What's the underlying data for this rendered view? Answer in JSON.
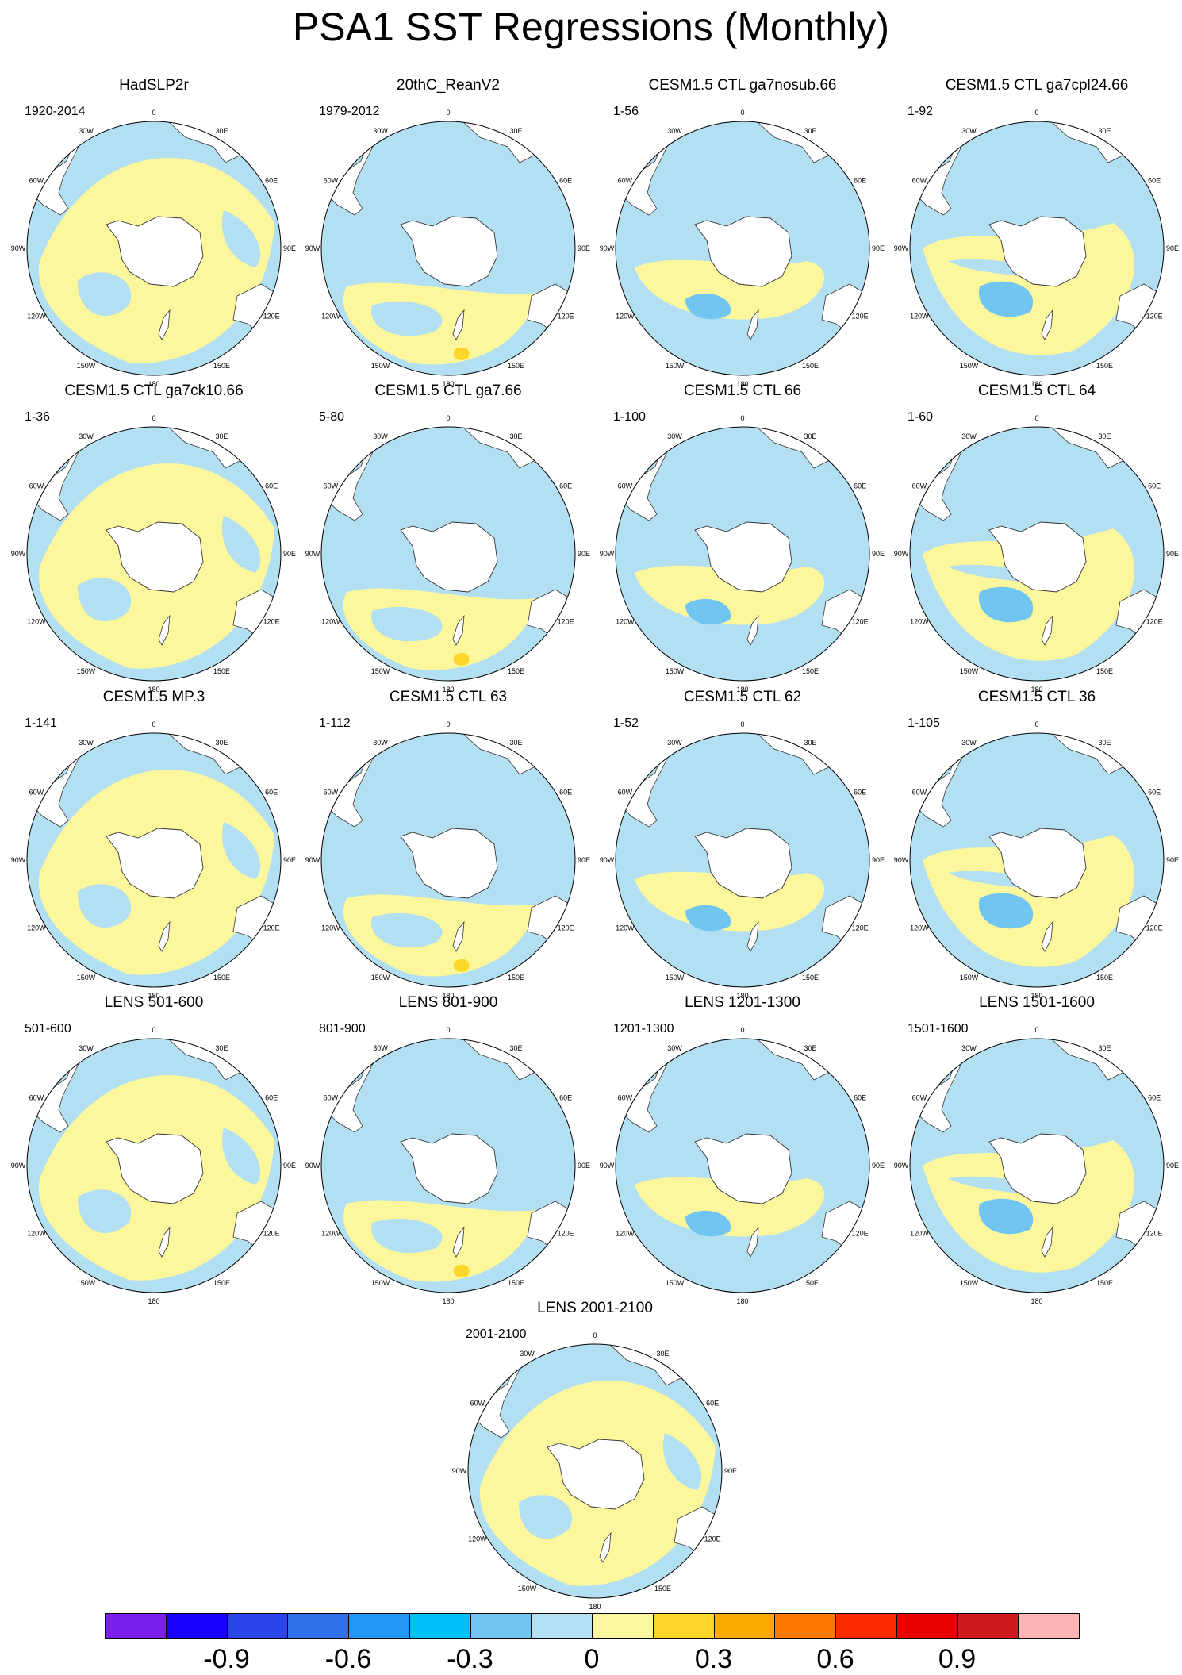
{
  "title": "PSA1 SST Regressions (Monthly)",
  "lon_labels": [
    "0",
    "30E",
    "60E",
    "90E",
    "120E",
    "150E",
    "180",
    "150W",
    "120W",
    "90W",
    "60W",
    "30W"
  ],
  "panels": [
    {
      "title": "HadSLP2r",
      "range": "1920-2014"
    },
    {
      "title": "20thC_ReanV2",
      "range": "1979-2012"
    },
    {
      "title": "CESM1.5 CTL ga7nosub.66",
      "range": "1-56"
    },
    {
      "title": "CESM1.5 CTL ga7cpl24.66",
      "range": "1-92"
    },
    {
      "title": "CESM1.5 CTL ga7ck10.66",
      "range": "1-36"
    },
    {
      "title": "CESM1.5 CTL ga7.66",
      "range": "5-80"
    },
    {
      "title": "CESM1.5 CTL 66",
      "range": "1-100"
    },
    {
      "title": "CESM1.5 CTL 64",
      "range": "1-60"
    },
    {
      "title": "CESM1.5 MP.3",
      "range": "1-141"
    },
    {
      "title": "CESM1.5 CTL 63",
      "range": "1-112"
    },
    {
      "title": "CESM1.5 CTL 62",
      "range": "1-52"
    },
    {
      "title": "CESM1.5 CTL 36",
      "range": "1-105"
    },
    {
      "title": "LENS 501-600",
      "range": "501-600"
    },
    {
      "title": "LENS 801-900",
      "range": "801-900"
    },
    {
      "title": "LENS 1201-1300",
      "range": "1201-1300"
    },
    {
      "title": "LENS 1501-1600",
      "range": "1501-1600"
    },
    {
      "title": "LENS 2001-2100",
      "range": "2001-2100"
    }
  ],
  "colorbar": {
    "colors": [
      "#7b1fef",
      "#1a00ff",
      "#2b44ec",
      "#3070e8",
      "#2496f5",
      "#00c0fa",
      "#70c6f0",
      "#b3dff2",
      "#fcf79c",
      "#fdd62a",
      "#fdaa00",
      "#fd7800",
      "#fc2c00",
      "#eb0000",
      "#cd1b1b",
      "#fdb4b4"
    ],
    "labels": [
      "-0.9",
      "-0.6",
      "-0.3",
      "0",
      "0.3",
      "0.6",
      "0.9"
    ],
    "label_values": [
      -0.9,
      -0.6,
      -0.3,
      0,
      0.3,
      0.6,
      0.9
    ]
  },
  "legend_colors": {
    "ocean_negative_weak": "#b3dff2",
    "ocean_negative_mid": "#70c6f0",
    "ocean_positive_weak": "#fcf79c",
    "ocean_positive_mid": "#fdd62a",
    "land": "#ffffff"
  }
}
